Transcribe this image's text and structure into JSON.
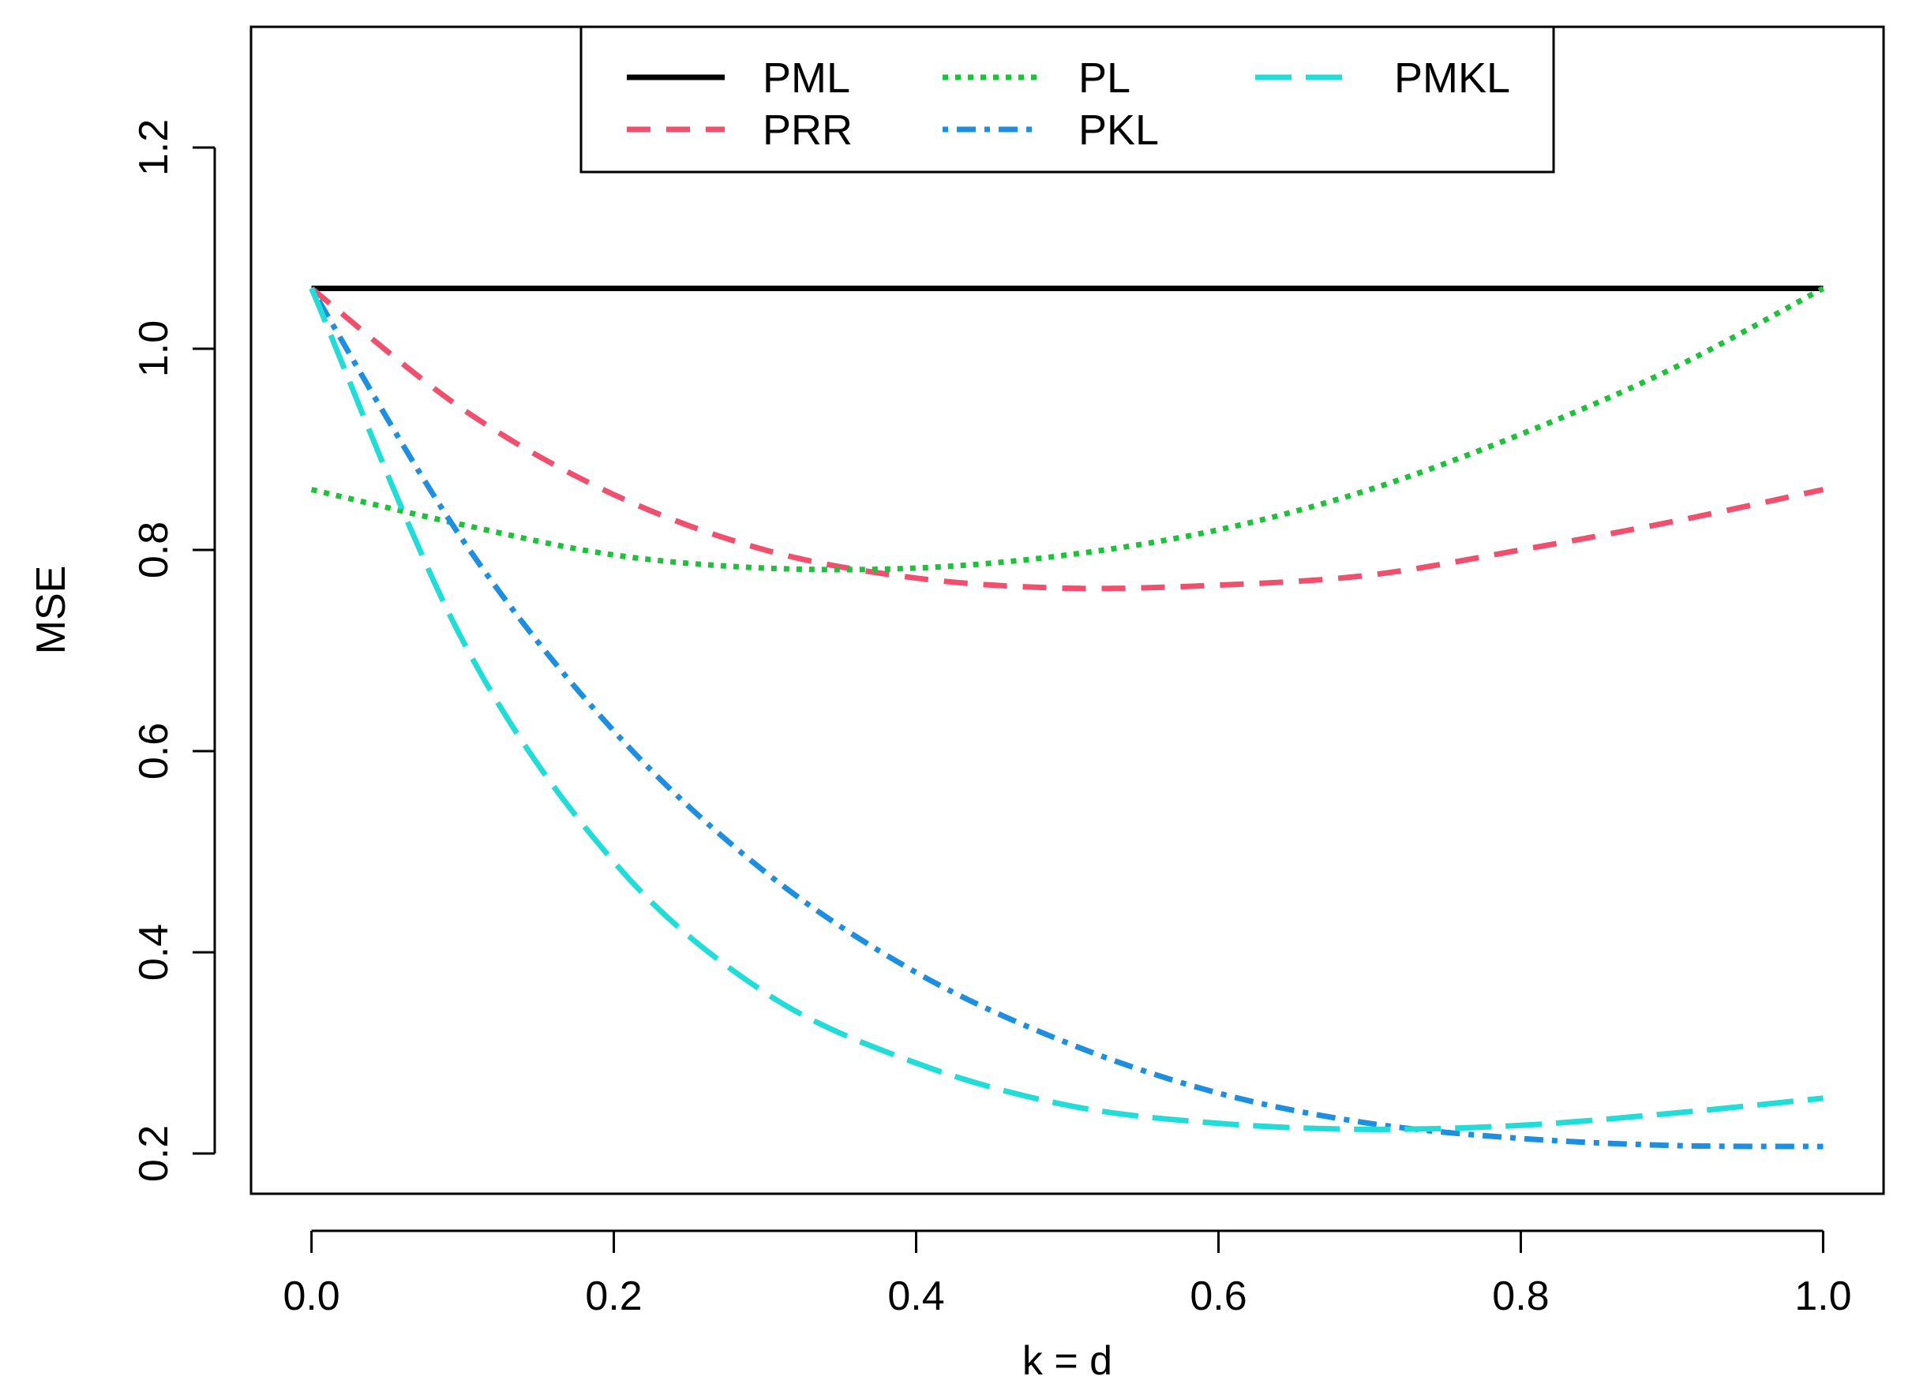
{
  "chart_data": {
    "type": "line",
    "title": "",
    "xlabel": "k = d",
    "ylabel": "MSE",
    "xlim": [
      -0.04,
      1.04
    ],
    "ylim": [
      0.16,
      1.32
    ],
    "xticks": [
      0.0,
      0.2,
      0.4,
      0.6,
      0.8,
      1.0
    ],
    "xtick_labels": [
      "0.0",
      "0.2",
      "0.4",
      "0.6",
      "0.8",
      "1.0"
    ],
    "yticks": [
      0.2,
      0.4,
      0.6,
      0.8,
      1.0,
      1.2
    ],
    "ytick_labels": [
      "0.2",
      "0.4",
      "0.6",
      "0.8",
      "1.0",
      "1.2"
    ],
    "grid": false,
    "legend_position": "top-center",
    "x": [
      0.0,
      0.1,
      0.2,
      0.3,
      0.4,
      0.5,
      0.6,
      0.7,
      0.8,
      0.9,
      1.0
    ],
    "series": [
      {
        "name": "PML",
        "color": "#000000",
        "dash": "solid",
        "values": [
          1.06,
          1.06,
          1.06,
          1.06,
          1.06,
          1.06,
          1.06,
          1.06,
          1.06,
          1.06,
          1.06
        ]
      },
      {
        "name": "PRR",
        "color": "#f0506e",
        "dash": "dashed",
        "values": [
          1.06,
          0.94,
          0.855,
          0.8,
          0.772,
          0.762,
          0.765,
          0.775,
          0.8,
          0.828,
          0.86
        ]
      },
      {
        "name": "PL",
        "color": "#1dc23a",
        "dash": "dotted",
        "values": [
          0.86,
          0.825,
          0.795,
          0.782,
          0.782,
          0.795,
          0.82,
          0.86,
          0.915,
          0.98,
          1.06
        ]
      },
      {
        "name": "PKL",
        "color": "#1e8fe0",
        "dash": "dotdash",
        "values": [
          1.06,
          0.81,
          0.62,
          0.48,
          0.38,
          0.31,
          0.26,
          0.23,
          0.215,
          0.208,
          0.207
        ]
      },
      {
        "name": "PMKL",
        "color": "#22dcd8",
        "dash": "longdash",
        "values": [
          1.06,
          0.71,
          0.49,
          0.36,
          0.29,
          0.248,
          0.23,
          0.224,
          0.228,
          0.24,
          0.255
        ]
      }
    ]
  }
}
